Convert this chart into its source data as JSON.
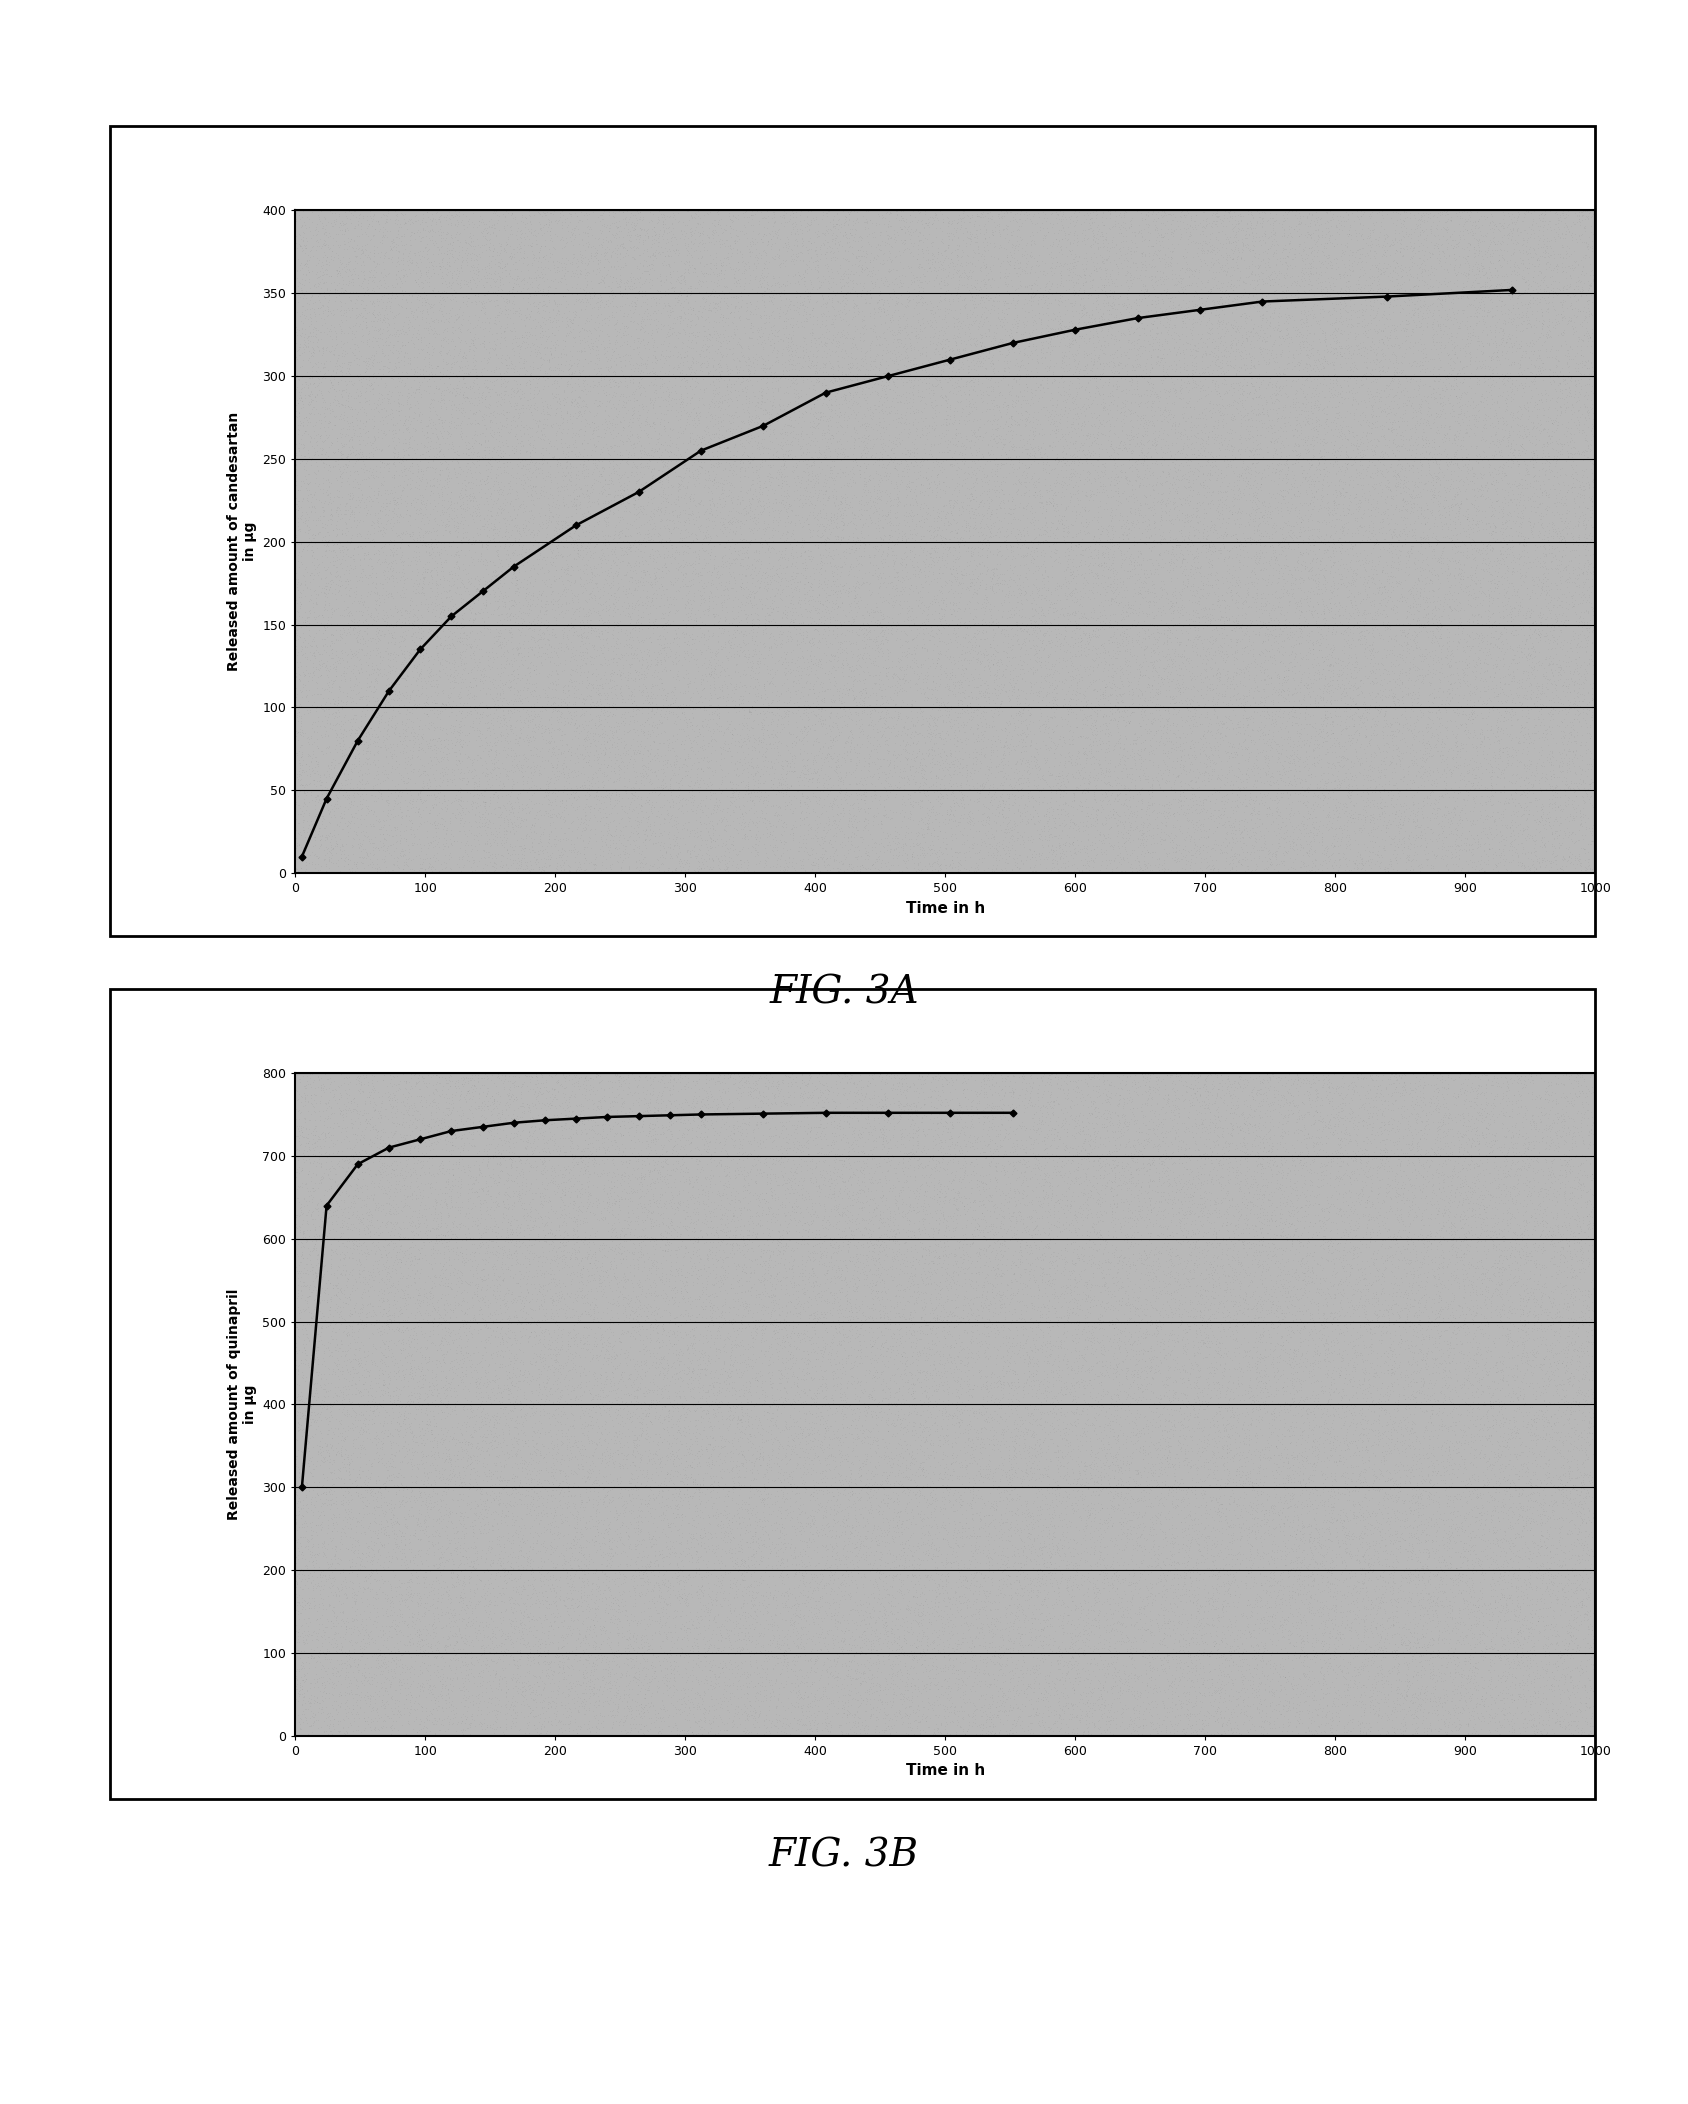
{
  "fig3a": {
    "xlabel": "Time in h",
    "ylabel": "Released amount of candesartan\nin µg",
    "xlim": [
      0,
      1000
    ],
    "ylim": [
      0,
      400
    ],
    "xticks": [
      0,
      100,
      200,
      300,
      400,
      500,
      600,
      700,
      800,
      900,
      1000
    ],
    "yticks": [
      0,
      50,
      100,
      150,
      200,
      250,
      300,
      350,
      400
    ],
    "x": [
      5,
      24,
      48,
      72,
      96,
      120,
      144,
      168,
      216,
      264,
      312,
      360,
      408,
      456,
      504,
      552,
      600,
      648,
      696,
      744,
      840,
      936
    ],
    "y": [
      10,
      45,
      80,
      110,
      135,
      155,
      170,
      185,
      210,
      230,
      255,
      270,
      290,
      300,
      310,
      320,
      328,
      335,
      340,
      345,
      348,
      352
    ]
  },
  "fig3b": {
    "xlabel": "Time in h",
    "ylabel": "Released amount of quinapril\nin µg",
    "xlim": [
      0,
      1000
    ],
    "ylim": [
      0,
      800
    ],
    "xticks": [
      0,
      100,
      200,
      300,
      400,
      500,
      600,
      700,
      800,
      900,
      1000
    ],
    "yticks": [
      0,
      100,
      200,
      300,
      400,
      500,
      600,
      700,
      800
    ],
    "x": [
      5,
      24,
      48,
      72,
      96,
      120,
      144,
      168,
      192,
      216,
      240,
      264,
      288,
      312,
      360,
      408,
      456,
      504,
      552
    ],
    "y": [
      300,
      640,
      690,
      710,
      720,
      730,
      735,
      740,
      743,
      745,
      747,
      748,
      749,
      750,
      751,
      752,
      752,
      752,
      752
    ]
  },
  "bg_color": "#b8b8b8",
  "page_color": "#ffffff",
  "line_color": "#000000",
  "marker": "D",
  "marker_size": 3.5,
  "marker_color": "#000000",
  "label_fontsize": 10,
  "tick_fontsize": 9,
  "caption_fontsize": 28
}
